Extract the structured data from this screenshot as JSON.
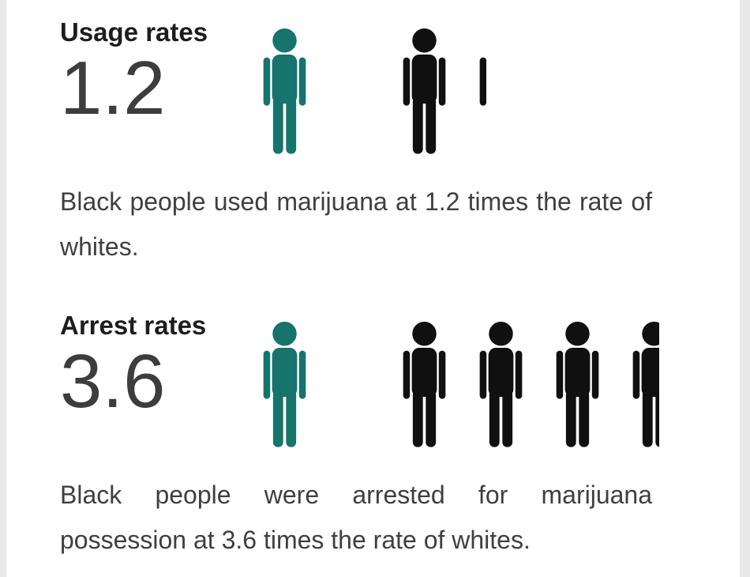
{
  "page": {
    "background": "#ffffff",
    "frame_color": "#e8e8e8"
  },
  "chart_data": {
    "type": "pictogram",
    "icon": "person",
    "colors": {
      "baseline": "#16746C",
      "value": "#101010"
    },
    "series": [
      {
        "label": "Usage rates",
        "value": 1.2,
        "value_display": "1.2",
        "baseline_icons": 1,
        "value_icons_full": 1,
        "value_icons_fraction": 0.2,
        "caption": "Black people used marijuana at 1.2 times the rate of whites."
      },
      {
        "label": "Arrest rates",
        "value": 3.6,
        "value_display": "3.6",
        "baseline_icons": 1,
        "value_icons_full": 3,
        "value_icons_fraction": 0.6,
        "caption": "Black people were arrested for marijuana possession at 3.6 times the rate of whites."
      }
    ]
  }
}
